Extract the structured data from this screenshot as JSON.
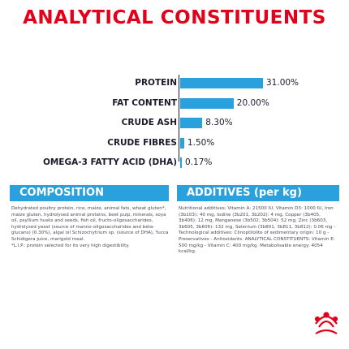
{
  "title": "ANALYTICAL CONSTITUENTS",
  "colors": {
    "title": "#e2001a",
    "bar": "#2aa1dc",
    "panel": "#2aa1dc",
    "logo": "#e2001a",
    "text": "#1b1b2b"
  },
  "chart_data": {
    "type": "bar",
    "orientation": "horizontal",
    "categories": [
      "PROTEIN",
      "FAT CONTENT",
      "CRUDE ASH",
      "CRUDE FIBRES",
      "OMEGA-3 FATTY ACID (DHA)"
    ],
    "values": [
      31.0,
      20.0,
      8.3,
      1.5,
      0.17
    ],
    "value_labels": [
      "31.00%",
      "20.00%",
      "8.30%",
      "1.50%",
      "0.17%"
    ],
    "unit": "%"
  },
  "composition": {
    "heading": "COMPOSITION",
    "text": "Dehydrated poultry protein, rice, maize, animal fats, wheat gluten*, maize gluten, hydrolysed animal proteins, beet pulp, minerals, soya oil, psyllium husks and seeds, fish oil, fructo-oligosaccharides, hydrolysed yeast (source of manno-oligosaccharides and beta-glucans) (0.30%), algal oil Schizochytrium sp. (source of DHA), Yucca Schidigera juice, marigold meal.",
    "footnote": "*L.I.P.: protein selected for its very high digestibility."
  },
  "additives": {
    "heading": "ADDITIVES (per kg)",
    "text": "Nutritional additives: Vitamin A: 21500 IU, Vitamin D3: 1000 IU, Iron (3b103): 40 mg, Iodine (3b201, 3b202): 4 mg, Copper (3b405, 3b406): 12 mg, Manganese (3b502, 3b504): 52 mg, Zinc (3b603, 3b605, 3b606): 132 mg, Selenium (3b801, 3b811, 3b812): 0.06 mg - Technological additives: Clinoptilolite of sedimentary origin: 10 g - Preservatives - Antioxidants.",
    "text2": "ANALYTICAL CONSTITUENTS: Vitamin E: 500 mg/kg - Vitamin C: 400 mg/kg. Metabolisable energy: 4054 kcal/kg."
  },
  "logo": {
    "name": "Royal Canin crown logo"
  }
}
